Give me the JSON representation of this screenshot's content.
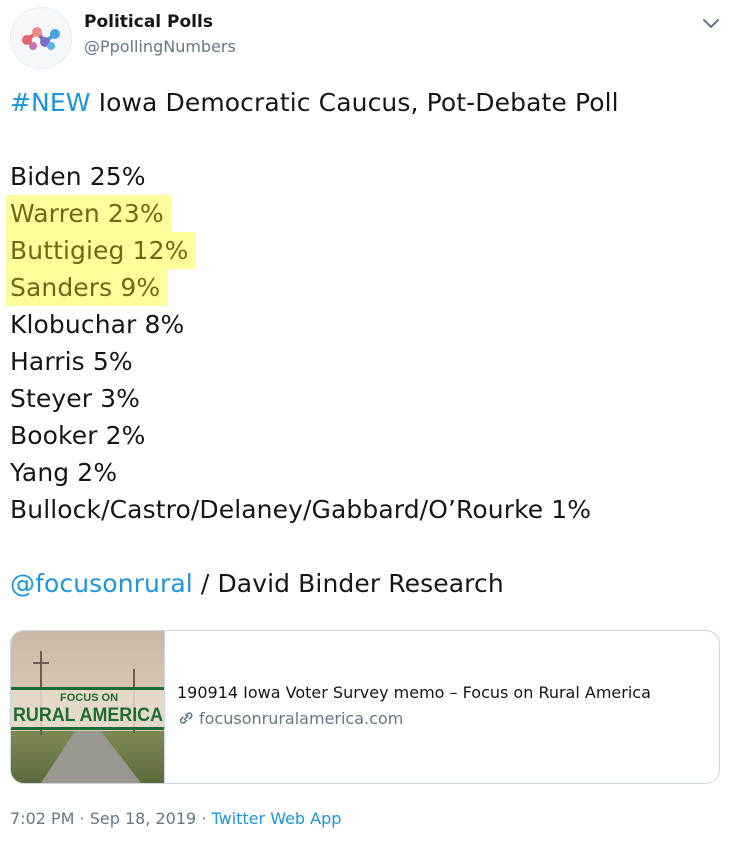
{
  "author": {
    "name": "Political Polls",
    "handle": "@PpollingNumbers"
  },
  "tweet": {
    "hashtag": "#NEW",
    "headline": " Iowa Democratic Caucus, Pot-Debate Poll",
    "results": [
      {
        "text": "Biden 25%",
        "highlighted": false
      },
      {
        "text": "Warren 23%",
        "highlighted": true
      },
      {
        "text": "Buttigieg 12%",
        "highlighted": true
      },
      {
        "text": "Sanders 9%",
        "highlighted": true
      },
      {
        "text": "Klobuchar 8%",
        "highlighted": false
      },
      {
        "text": "Harris 5%",
        "highlighted": false
      },
      {
        "text": "Steyer 3%",
        "highlighted": false
      },
      {
        "text": "Booker 2%",
        "highlighted": false
      },
      {
        "text": "Yang 2%",
        "highlighted": false
      },
      {
        "text": "Bullock/Castro/Delaney/Gabbard/O’Rourke 1%",
        "highlighted": false
      }
    ],
    "mention": "@focusonrural",
    "source": " / David Binder Research"
  },
  "card": {
    "image_line1": "FOCUS ON",
    "image_line2": "RURAL AMERICA",
    "title": "190914 Iowa Voter Survey memo – Focus on Rural America",
    "domain": "focusonruralamerica.com"
  },
  "meta": {
    "timestamp": "7:02 PM · Sep 18, 2019",
    "separator": " · ",
    "app": "Twitter Web App"
  },
  "colors": {
    "link": "#1b95e0",
    "highlight": "#fefd9c",
    "brand_green": "#1f6b35"
  },
  "icons": {
    "avatar": "polling-logo-icon",
    "menu": "chevron-down-icon",
    "card_link": "link-icon"
  }
}
